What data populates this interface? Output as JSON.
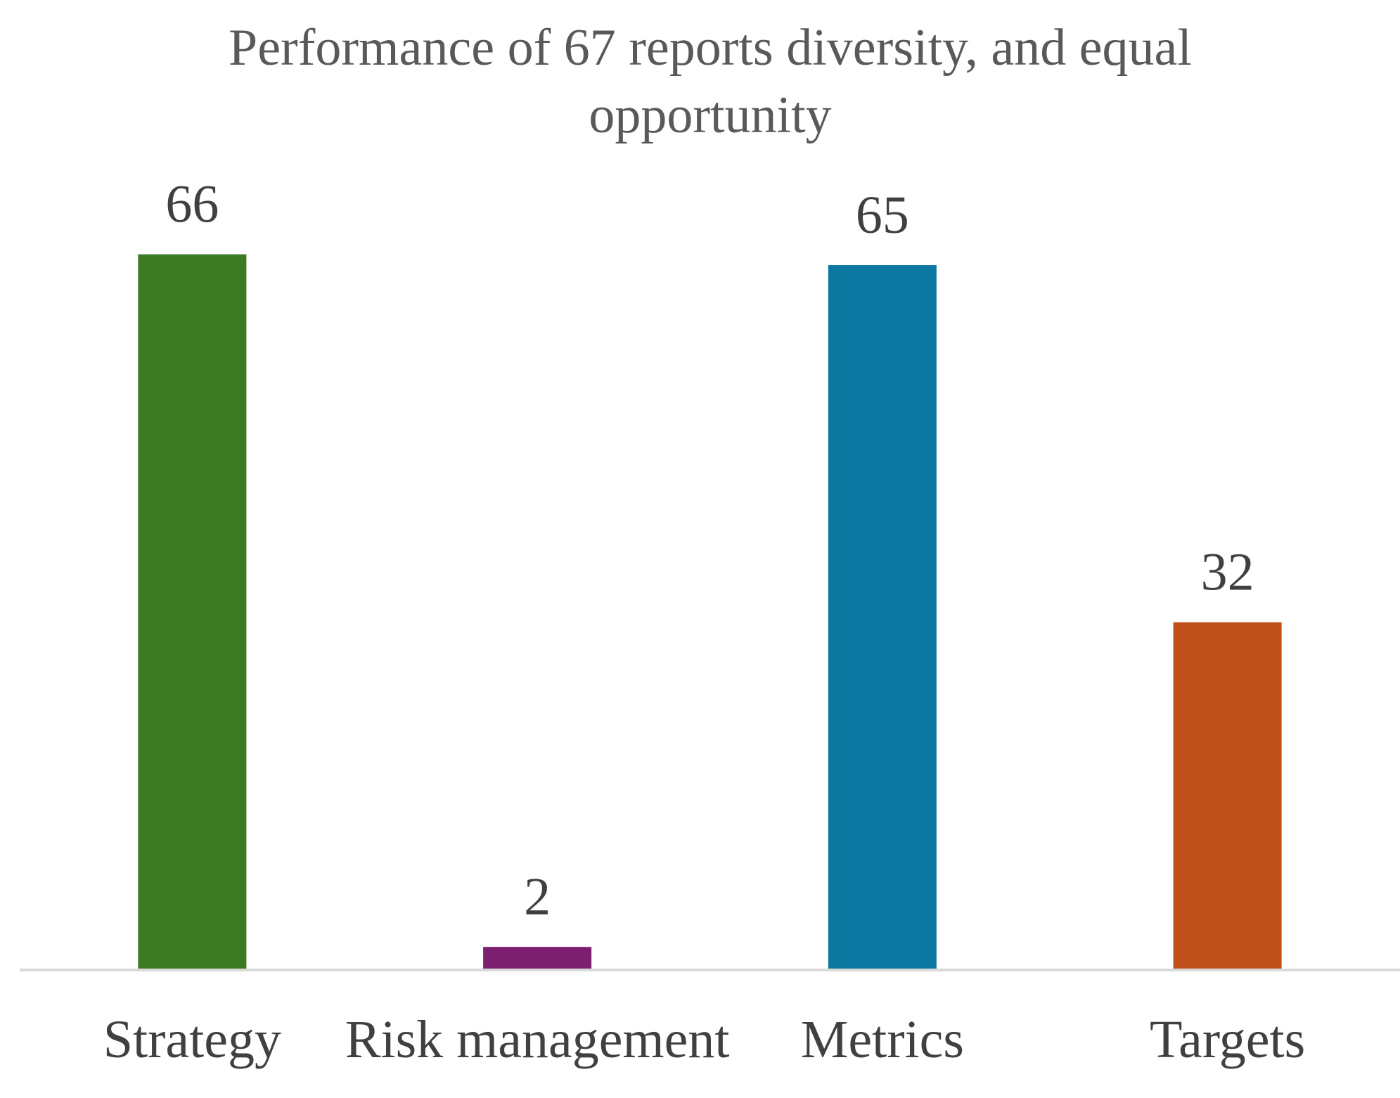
{
  "chart_data": {
    "type": "bar",
    "title": "Performance of 67 reports diversity, and equal opportunity",
    "categories": [
      "Strategy",
      "Risk management",
      "Metrics",
      "Targets"
    ],
    "values": [
      66,
      2,
      65,
      32
    ],
    "colors": [
      "#3d7a24",
      "#7b1f6e",
      "#0c77a1",
      "#c05019"
    ],
    "ylim": [
      0,
      70
    ],
    "grid": false
  }
}
